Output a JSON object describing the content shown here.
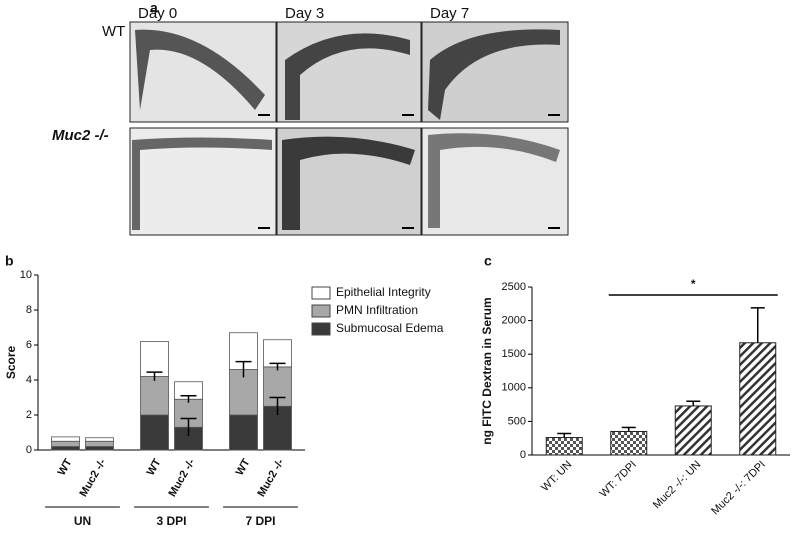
{
  "panel_a": {
    "label": "a",
    "columns": [
      "Day 0",
      "Day 3",
      "Day 7"
    ],
    "rows": [
      "WT",
      "Muc2 -/-"
    ]
  },
  "chart_data": [
    {
      "type": "stacked-bar",
      "panel_label": "b",
      "y_label": "Score",
      "categories": [
        "WT",
        "Muc2 -/-",
        "WT",
        "Muc2 -/-",
        "WT",
        "Muc2 -/-"
      ],
      "groups": [
        "UN",
        "3 DPI",
        "7 DPI"
      ],
      "series": [
        {
          "name": "Submucosal Edema",
          "color": "#3a3a3a",
          "values": [
            0.2,
            0.2,
            2.0,
            1.3,
            2.0,
            2.5
          ],
          "errors": [
            null,
            null,
            null,
            0.5,
            null,
            0.5
          ]
        },
        {
          "name": "PMN Infiltration",
          "color": "#a8a8a8",
          "values": [
            0.3,
            0.3,
            2.2,
            1.6,
            2.6,
            2.25
          ],
          "errors": [
            null,
            null,
            0.25,
            0.2,
            0.45,
            0.2
          ]
        },
        {
          "name": "Epithelial Integrity",
          "color": "#ffffff",
          "values": [
            0.25,
            0.2,
            2.0,
            1.0,
            2.1,
            1.55
          ],
          "errors": [
            null,
            null,
            null,
            null,
            null,
            null
          ]
        }
      ],
      "ylim": [
        0,
        10
      ],
      "yticks": [
        0,
        2,
        4,
        6,
        8,
        10
      ]
    },
    {
      "type": "bar",
      "panel_label": "c",
      "y_label": "ng FITC Dextran in Serum",
      "categories": [
        "WT: UN",
        "WT: 7DPI",
        "Muc2 -/-: UN",
        "Muc2 -/-: 7DPI"
      ],
      "values": [
        260,
        350,
        730,
        1670
      ],
      "errors": [
        60,
        60,
        70,
        520
      ],
      "patterns": [
        "checker",
        "checker",
        "stripe",
        "stripe"
      ],
      "annotation": "*",
      "ylim": [
        0,
        2500
      ],
      "yticks": [
        0,
        500,
        1000,
        1500,
        2000,
        2500
      ]
    }
  ]
}
